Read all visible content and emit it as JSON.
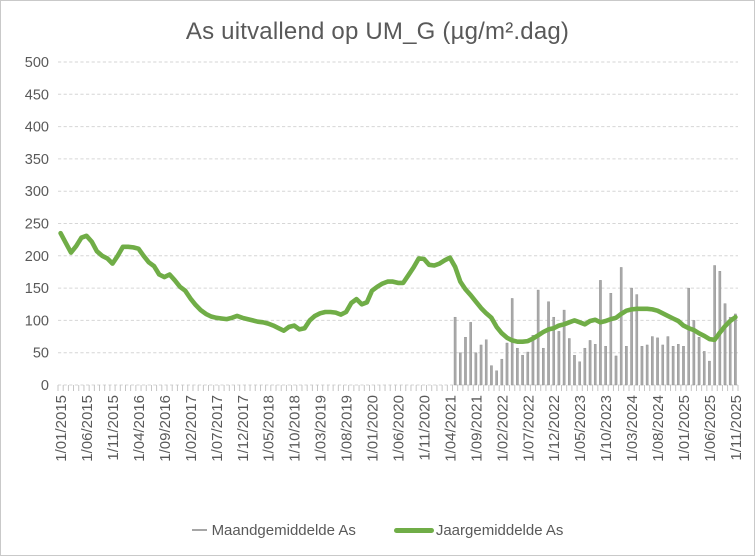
{
  "chart_data": {
    "type": "combo",
    "title": "As uitvallend op UM_G (µg/m².dag)",
    "ylabel": "",
    "xlabel": "",
    "ylim": [
      0,
      500
    ],
    "y_ticks": [
      0,
      50,
      100,
      150,
      200,
      250,
      300,
      350,
      400,
      450,
      500
    ],
    "n_categories": 131,
    "x_tick_interval": 5,
    "x_tick_labels": [
      "1/01/2015",
      "1/06/2015",
      "1/11/2015",
      "1/04/2016",
      "1/09/2016",
      "1/02/2017",
      "1/07/2017",
      "1/12/2017",
      "1/05/2018",
      "1/10/2018",
      "1/03/2019",
      "1/08/2019",
      "1/01/2020",
      "1/06/2020",
      "1/11/2020",
      "1/04/2021",
      "1/09/2021",
      "1/02/2022",
      "1/07/2022",
      "1/12/2022",
      "1/05/2023",
      "1/10/2023",
      "1/03/2024",
      "1/08/2024",
      "1/01/2025",
      "1/06/2025",
      "1/11/2025"
    ],
    "grid": "horizontal-dashed",
    "legend_position": "bottom",
    "series": [
      {
        "name": "Maandgemiddelde As",
        "type": "bar",
        "start_index": 76,
        "values": [
          105,
          50,
          74,
          97,
          50,
          62,
          70,
          30,
          22,
          40,
          65,
          134,
          57,
          46,
          51,
          77,
          147,
          57,
          129,
          105,
          83,
          116,
          72,
          46,
          36,
          57,
          69,
          63,
          162,
          60,
          142,
          45,
          182,
          60,
          150,
          140,
          60,
          62,
          75,
          73,
          62,
          75,
          60,
          63,
          60,
          150,
          100,
          74,
          52,
          37,
          185,
          176,
          126,
          105,
          110
        ]
      },
      {
        "name": "Jaargemiddelde As",
        "type": "line",
        "start_index": 0,
        "values": [
          235,
          220,
          205,
          215,
          228,
          231,
          222,
          207,
          200,
          196,
          188,
          200,
          214,
          214,
          213,
          211,
          200,
          190,
          184,
          171,
          167,
          171,
          162,
          152,
          146,
          134,
          124,
          116,
          110,
          106,
          104,
          103,
          102,
          104,
          107,
          104,
          102,
          100,
          98,
          97,
          95,
          92,
          88,
          84,
          90,
          92,
          86,
          88,
          100,
          107,
          111,
          113,
          113,
          112,
          109,
          113,
          127,
          133,
          125,
          128,
          146,
          152,
          157,
          160,
          160,
          158,
          158,
          170,
          182,
          196,
          195,
          186,
          185,
          188,
          193,
          197,
          183,
          160,
          148,
          139,
          129,
          119,
          111,
          104,
          90,
          80,
          73,
          69,
          67,
          67,
          68,
          72,
          77,
          82,
          86,
          88,
          92,
          94,
          97,
          100,
          97,
          94,
          99,
          101,
          97,
          99,
          102,
          104,
          110,
          115,
          117,
          118,
          118,
          118,
          117,
          115,
          111,
          107,
          103,
          99,
          92,
          88,
          85,
          80,
          76,
          71,
          70,
          81,
          91,
          99,
          105
        ]
      }
    ],
    "colors": {
      "line": "#70ad47",
      "bar_fill": "#a8a8a8",
      "bar_stroke": "#8f8f8f",
      "axis_text": "#595959",
      "gridline": "#d6d6d6",
      "tick": "#bfbfbf",
      "title_text": "#595959"
    }
  }
}
